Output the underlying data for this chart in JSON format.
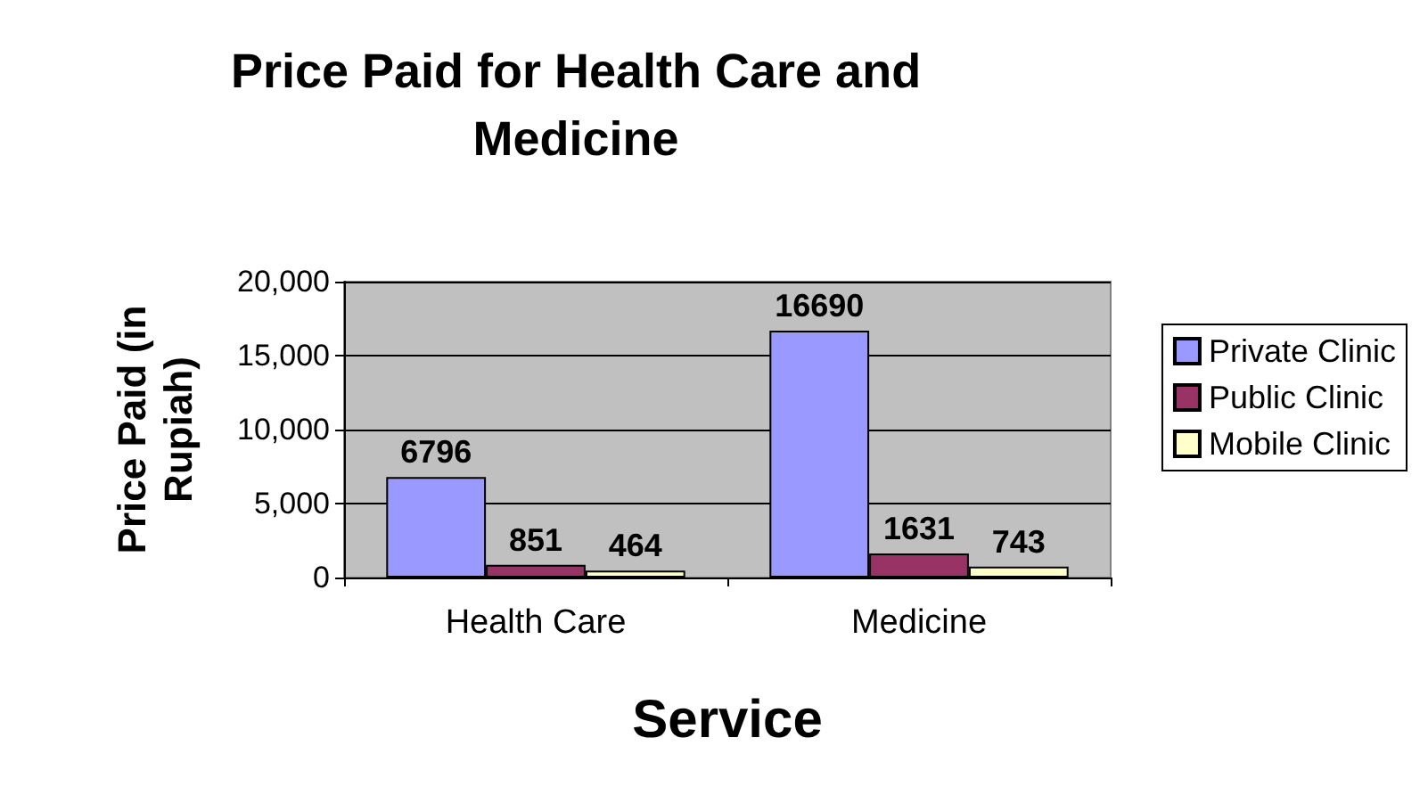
{
  "chart_data": {
    "type": "bar",
    "title": "Price Paid for Health Care and\nMedicine",
    "xlabel": "Service",
    "ylabel": "Price Paid (in\nRupiah)",
    "categories": [
      "Health Care",
      "Medicine"
    ],
    "series": [
      {
        "name": "Private Clinic",
        "color": "#9999ff",
        "values": [
          6796,
          16690
        ]
      },
      {
        "name": "Public Clinic",
        "color": "#993366",
        "values": [
          851,
          1631
        ]
      },
      {
        "name": "Mobile Clinic",
        "color": "#ffffcc",
        "values": [
          464,
          743
        ]
      }
    ],
    "ylim": [
      0,
      20000
    ],
    "yticks": [
      0,
      {
        "value": 5000,
        "label": "5,000"
      },
      {
        "value": 10000,
        "label": "10,000"
      },
      {
        "value": 15000,
        "label": "15,000"
      },
      {
        "value": 20000,
        "label": "20,000"
      }
    ],
    "grid": "y",
    "legend": "right",
    "data_labels": true
  }
}
